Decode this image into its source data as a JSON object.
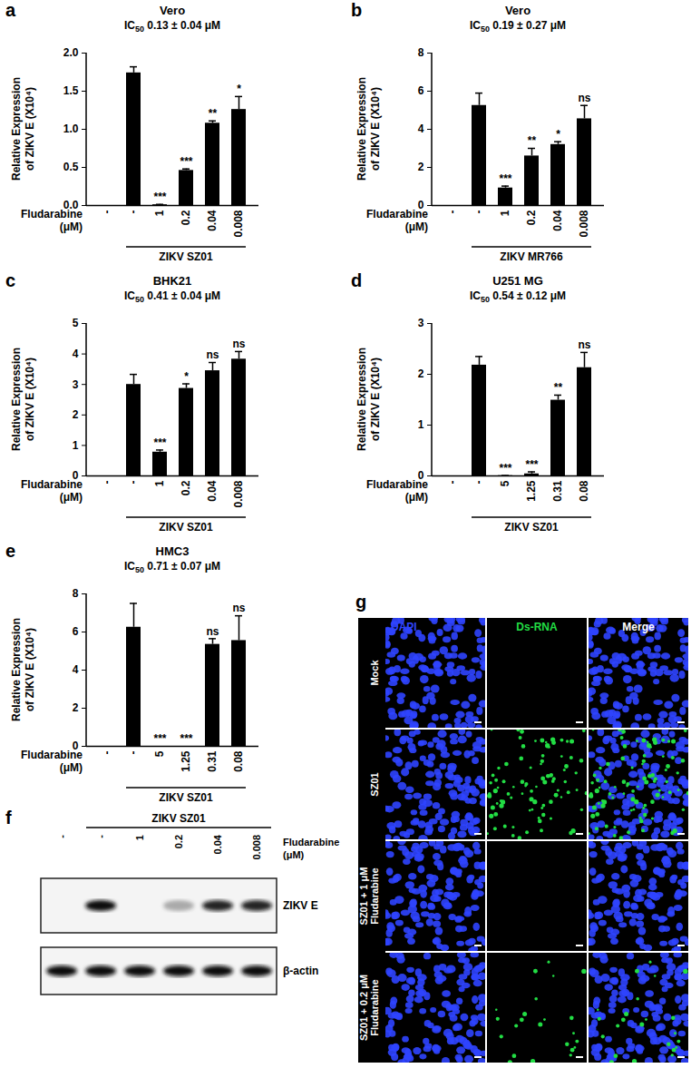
{
  "chart_data": [
    {
      "panel": "a",
      "type": "bar",
      "title": "Vero",
      "subtitle": "IC50 0.13 ± 0.04 μM",
      "categories": [
        "-",
        "-",
        "1",
        "0.2",
        "0.04",
        "0.008"
      ],
      "values": [
        0,
        1.74,
        0.01,
        0.46,
        1.08,
        1.26
      ],
      "errors": [
        0,
        0.08,
        0.005,
        0.02,
        0.03,
        0.17
      ],
      "significance": [
        null,
        null,
        "***",
        "***",
        "**",
        "*"
      ],
      "xlabel": "Fludarabine (μM)",
      "group_label": "ZIKV SZ01",
      "ylabel": "Relative Expression of ZIKV E (X10⁴)",
      "ylim": [
        0,
        2
      ],
      "yticks": [
        {
          "value": 0,
          "label": "0.0"
        },
        {
          "value": 0.5,
          "label": "0.5"
        },
        {
          "value": 1,
          "label": "1.0"
        },
        {
          "value": 1.5,
          "label": "1.5"
        },
        {
          "value": 2,
          "label": "2.0"
        }
      ],
      "color": "#000000"
    },
    {
      "panel": "b",
      "type": "bar",
      "title": "Vero",
      "subtitle": "IC50 0.19 ± 0.27 μM",
      "categories": [
        "-",
        "-",
        "1",
        "0.2",
        "0.04",
        "0.008"
      ],
      "values": [
        0,
        5.25,
        0.92,
        2.6,
        3.2,
        4.55
      ],
      "errors": [
        0,
        0.65,
        0.1,
        0.4,
        0.15,
        0.7
      ],
      "significance": [
        null,
        null,
        "***",
        "**",
        "*",
        "ns"
      ],
      "xlabel": "Fludarabine (μM)",
      "group_label": "ZIKV MR766",
      "ylabel": "Relative Expression of ZIKV E (X10⁴)",
      "ylim": [
        0,
        8
      ],
      "yticks": [
        0,
        2,
        4,
        6,
        8
      ],
      "color": "#000000"
    },
    {
      "panel": "c",
      "type": "bar",
      "title": "BHK21",
      "subtitle": "IC50 0.41 ± 0.04 μM",
      "categories": [
        "-",
        "-",
        "1",
        "0.2",
        "0.04",
        "0.008"
      ],
      "values": [
        0,
        3.0,
        0.78,
        2.87,
        3.45,
        3.83
      ],
      "errors": [
        0,
        0.33,
        0.07,
        0.15,
        0.27,
        0.25
      ],
      "significance": [
        null,
        null,
        "***",
        "*",
        "ns",
        "ns"
      ],
      "xlabel": "Fludarabine (μM)",
      "group_label": "ZIKV SZ01",
      "ylabel": "Relative Expression of ZIKV E (X10⁴)",
      "ylim": [
        0,
        5
      ],
      "yticks": [
        0,
        1,
        2,
        3,
        4,
        5
      ],
      "color": "#000000"
    },
    {
      "panel": "d",
      "type": "bar",
      "title": "U251 MG",
      "subtitle": "IC50 0.54 ± 0.12 μM",
      "categories": [
        "-",
        "-",
        "5",
        "1.25",
        "0.31",
        "0.08"
      ],
      "values": [
        0,
        2.18,
        0.005,
        0.04,
        1.49,
        2.13
      ],
      "errors": [
        0,
        0.17,
        0.003,
        0.04,
        0.1,
        0.3
      ],
      "significance": [
        null,
        null,
        "***",
        "***",
        "**",
        "ns"
      ],
      "xlabel": "Fludarabine (μM)",
      "group_label": "ZIKV SZ01",
      "ylabel": "Relative Expression of ZIKV E (X10⁴)",
      "ylim": [
        0,
        3
      ],
      "yticks": [
        0,
        1,
        2,
        3
      ],
      "color": "#000000"
    },
    {
      "panel": "e",
      "type": "bar",
      "title": "HMC3",
      "subtitle": "IC50 0.71 ± 0.07 μM",
      "categories": [
        "-",
        "-",
        "5",
        "1.25",
        "0.31",
        "0.08"
      ],
      "values": [
        0,
        6.25,
        0,
        0,
        5.35,
        5.55
      ],
      "errors": [
        0,
        1.25,
        0,
        0,
        0.3,
        1.3
      ],
      "significance": [
        null,
        null,
        "***",
        "***",
        "ns",
        "ns"
      ],
      "xlabel": "Fludarabine (μM)",
      "group_label": "ZIKV SZ01",
      "ylabel": "Relative Expression of ZIKV E (X10⁴)",
      "ylim": [
        0,
        8
      ],
      "yticks": [
        0,
        2,
        4,
        6,
        8
      ],
      "color": "#000000"
    }
  ],
  "blot": {
    "panel": "f",
    "group_label": "ZIKV SZ01",
    "lanes_title": "Fludarabine (μM)",
    "lanes": [
      "-",
      "-",
      "1",
      "0.2",
      "0.04",
      "0.008"
    ],
    "rows": [
      {
        "label": "ZIKV E",
        "intensities": [
          0,
          1,
          0,
          0.3,
          0.9,
          0.9
        ]
      },
      {
        "label": "β-actin",
        "intensities": [
          1,
          1,
          1,
          1,
          1,
          1
        ]
      }
    ]
  },
  "micrograph": {
    "panel": "g",
    "channels": [
      {
        "label": "DAPI",
        "color": "#2f44ff"
      },
      {
        "label": "Ds-RNA",
        "color": "#22dd44"
      },
      {
        "label": "Merge",
        "color": "#ffffff"
      }
    ],
    "rows": [
      {
        "label": "Mock",
        "dsrna_level": 0
      },
      {
        "label": "SZ01",
        "dsrna_level": 1
      },
      {
        "label": "SZ01 + 1 μM Fludarabine",
        "dsrna_level": 0
      },
      {
        "label": "SZ01 + 0.2 μM Fludarabine",
        "dsrna_level": 0.25
      }
    ]
  }
}
